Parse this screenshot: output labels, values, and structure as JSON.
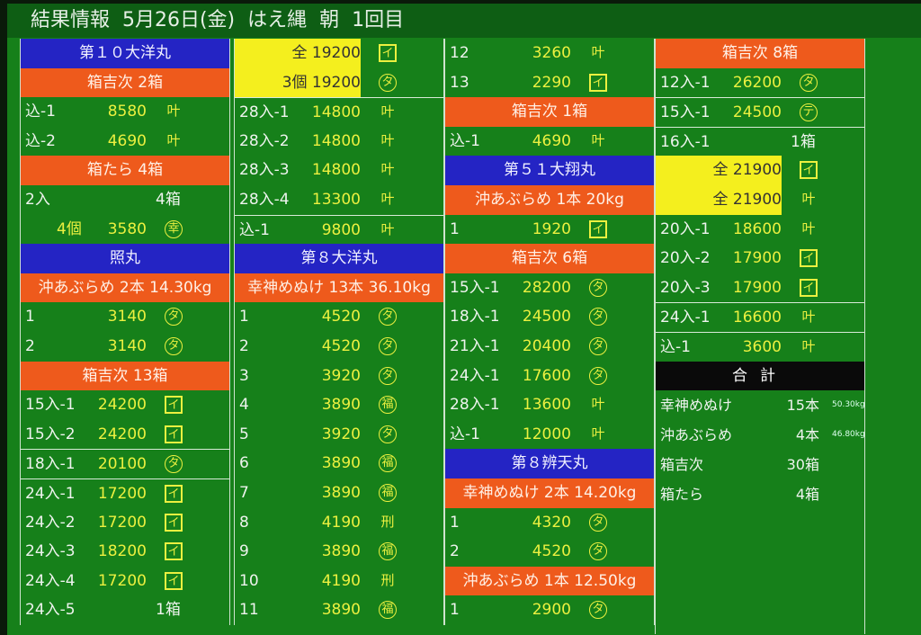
{
  "title": "結果情報  5月26日(金)  はえ縄  朝  1回目",
  "colors": {
    "ship": "#2424c4",
    "category": "#ee5a1c",
    "highlight": "#f4ef1e",
    "background": "#16801a",
    "value": "#ecf040"
  },
  "mark_glyphs": {
    "kanau": "叶",
    "i": "イ",
    "ta": "タ",
    "ko": "幸",
    "te": "テ",
    "fuku": "福",
    "kei": "刑"
  },
  "mark_styles": {
    "kanau": "plain",
    "i": "box",
    "ta": "circle",
    "ko": "circle",
    "te": "circle",
    "fuku": "circle",
    "kei": "plain"
  },
  "columns": [
    {
      "rows": [
        {
          "type": "ship",
          "text": "第１０大洋丸"
        },
        {
          "type": "cat",
          "text": "箱吉次 2箱"
        },
        {
          "type": "item",
          "label": "込-1",
          "value": "8580",
          "mark": "kanau"
        },
        {
          "type": "item",
          "label": "込-2",
          "value": "4690",
          "mark": "kanau"
        },
        {
          "type": "cat",
          "text": "箱たら 4箱"
        },
        {
          "type": "item",
          "label": "2入",
          "count": "4箱"
        },
        {
          "type": "item",
          "label": "",
          "qty": "4個",
          "value": "3580",
          "mark": "ko"
        },
        {
          "type": "ship",
          "text": "照丸"
        },
        {
          "type": "cat",
          "text": "沖あぶらめ 2本 14.30kg"
        },
        {
          "type": "item",
          "label": "1",
          "value": "3140",
          "mark": "ta"
        },
        {
          "type": "item",
          "label": "2",
          "value": "3140",
          "mark": "ta"
        },
        {
          "type": "cat",
          "text": "箱吉次 13箱"
        },
        {
          "type": "item",
          "label": "15入-1",
          "value": "24200",
          "mark": "i"
        },
        {
          "type": "item",
          "label": "15入-2",
          "value": "24200",
          "mark": "i"
        },
        {
          "type": "item",
          "label": "18入-1",
          "value": "20100",
          "mark": "ta",
          "sep": true
        },
        {
          "type": "item",
          "label": "24入-1",
          "value": "17200",
          "mark": "i",
          "sep": true
        },
        {
          "type": "item",
          "label": "24入-2",
          "value": "17200",
          "mark": "i"
        },
        {
          "type": "item",
          "label": "24入-3",
          "value": "18200",
          "mark": "i"
        },
        {
          "type": "item",
          "label": "24入-4",
          "value": "17200",
          "mark": "i"
        },
        {
          "type": "item",
          "label": "24入-5",
          "count": "1箱"
        }
      ]
    },
    {
      "rows": [
        {
          "type": "item",
          "label": "",
          "qty": "",
          "value": "全  19200",
          "mark": "i",
          "hl": true
        },
        {
          "type": "item",
          "label": "",
          "qty": "",
          "value": "3個  19200",
          "mark": "ta",
          "hl": true
        },
        {
          "type": "item",
          "label": "28入-1",
          "value": "14800",
          "mark": "kanau",
          "sep": true
        },
        {
          "type": "item",
          "label": "28入-2",
          "value": "14800",
          "mark": "kanau"
        },
        {
          "type": "item",
          "label": "28入-3",
          "value": "14800",
          "mark": "kanau"
        },
        {
          "type": "item",
          "label": "28入-4",
          "value": "13300",
          "mark": "kanau"
        },
        {
          "type": "item",
          "label": "込-1",
          "value": "9800",
          "mark": "kanau",
          "sep": true
        },
        {
          "type": "ship",
          "text": "第８大洋丸"
        },
        {
          "type": "cat",
          "text": "幸神めぬけ 13本 36.10kg"
        },
        {
          "type": "item",
          "label": "1",
          "value": "4520",
          "mark": "ta"
        },
        {
          "type": "item",
          "label": "2",
          "value": "4520",
          "mark": "ta"
        },
        {
          "type": "item",
          "label": "3",
          "value": "3920",
          "mark": "ta"
        },
        {
          "type": "item",
          "label": "4",
          "value": "3890",
          "mark": "fuku"
        },
        {
          "type": "item",
          "label": "5",
          "value": "3920",
          "mark": "ta"
        },
        {
          "type": "item",
          "label": "6",
          "value": "3890",
          "mark": "fuku"
        },
        {
          "type": "item",
          "label": "7",
          "value": "3890",
          "mark": "fuku"
        },
        {
          "type": "item",
          "label": "8",
          "value": "4190",
          "mark": "kei"
        },
        {
          "type": "item",
          "label": "9",
          "value": "3890",
          "mark": "fuku"
        },
        {
          "type": "item",
          "label": "10",
          "value": "4190",
          "mark": "kei"
        },
        {
          "type": "item",
          "label": "11",
          "value": "3890",
          "mark": "fuku"
        }
      ]
    },
    {
      "rows": [
        {
          "type": "item",
          "label": "12",
          "value": "3260",
          "mark": "kanau"
        },
        {
          "type": "item",
          "label": "13",
          "value": "2290",
          "mark": "i"
        },
        {
          "type": "cat",
          "text": "箱吉次 1箱"
        },
        {
          "type": "item",
          "label": "込-1",
          "value": "4690",
          "mark": "kanau"
        },
        {
          "type": "ship",
          "text": "第５１大翔丸"
        },
        {
          "type": "cat",
          "text": "沖あぶらめ 1本 20kg"
        },
        {
          "type": "item",
          "label": "1",
          "value": "1920",
          "mark": "i"
        },
        {
          "type": "cat",
          "text": "箱吉次 6箱"
        },
        {
          "type": "item",
          "label": "15入-1",
          "value": "28200",
          "mark": "ta"
        },
        {
          "type": "item",
          "label": "18入-1",
          "value": "24500",
          "mark": "ta"
        },
        {
          "type": "item",
          "label": "21入-1",
          "value": "20400",
          "mark": "ta"
        },
        {
          "type": "item",
          "label": "24入-1",
          "value": "17600",
          "mark": "ta"
        },
        {
          "type": "item",
          "label": "28入-1",
          "value": "13600",
          "mark": "kanau"
        },
        {
          "type": "item",
          "label": "込-1",
          "value": "12000",
          "mark": "kanau"
        },
        {
          "type": "ship",
          "text": "第８辨天丸"
        },
        {
          "type": "cat",
          "text": "幸神めぬけ 2本 14.20kg"
        },
        {
          "type": "item",
          "label": "1",
          "value": "4320",
          "mark": "ta"
        },
        {
          "type": "item",
          "label": "2",
          "value": "4520",
          "mark": "ta"
        },
        {
          "type": "cat",
          "text": "沖あぶらめ 1本 12.50kg"
        },
        {
          "type": "item",
          "label": "1",
          "value": "2900",
          "mark": "ta"
        }
      ]
    },
    {
      "rows": [
        {
          "type": "cat",
          "text": "箱吉次 8箱"
        },
        {
          "type": "item",
          "label": "12入-1",
          "value": "26200",
          "mark": "ta"
        },
        {
          "type": "item",
          "label": "15入-1",
          "value": "24500",
          "mark": "te",
          "sep": true
        },
        {
          "type": "item",
          "label": "16入-1",
          "count": "1箱",
          "sep": true
        },
        {
          "type": "item",
          "label": "",
          "value": "全  21900",
          "mark": "i",
          "hl": true
        },
        {
          "type": "item",
          "label": "",
          "value": "全  21900",
          "mark": "kanau",
          "hl": true
        },
        {
          "type": "item",
          "label": "20入-1",
          "value": "18600",
          "mark": "kanau"
        },
        {
          "type": "item",
          "label": "20入-2",
          "value": "17900",
          "mark": "i"
        },
        {
          "type": "item",
          "label": "20入-3",
          "value": "17900",
          "mark": "i"
        },
        {
          "type": "item",
          "label": "24入-1",
          "value": "16600",
          "mark": "kanau",
          "sep": true
        },
        {
          "type": "item",
          "label": "込-1",
          "value": "3600",
          "mark": "kanau",
          "sep": true
        },
        {
          "type": "tot",
          "text": "合計"
        }
      ],
      "summary": [
        {
          "name": "幸神めぬけ",
          "count": "15本",
          "weight": "50.30kg"
        },
        {
          "name": "沖あぶらめ",
          "count": "4本",
          "weight": "46.80kg"
        },
        {
          "name": "箱吉次",
          "count": "30箱",
          "weight": ""
        },
        {
          "name": "箱たら",
          "count": "4箱",
          "weight": ""
        }
      ]
    }
  ]
}
